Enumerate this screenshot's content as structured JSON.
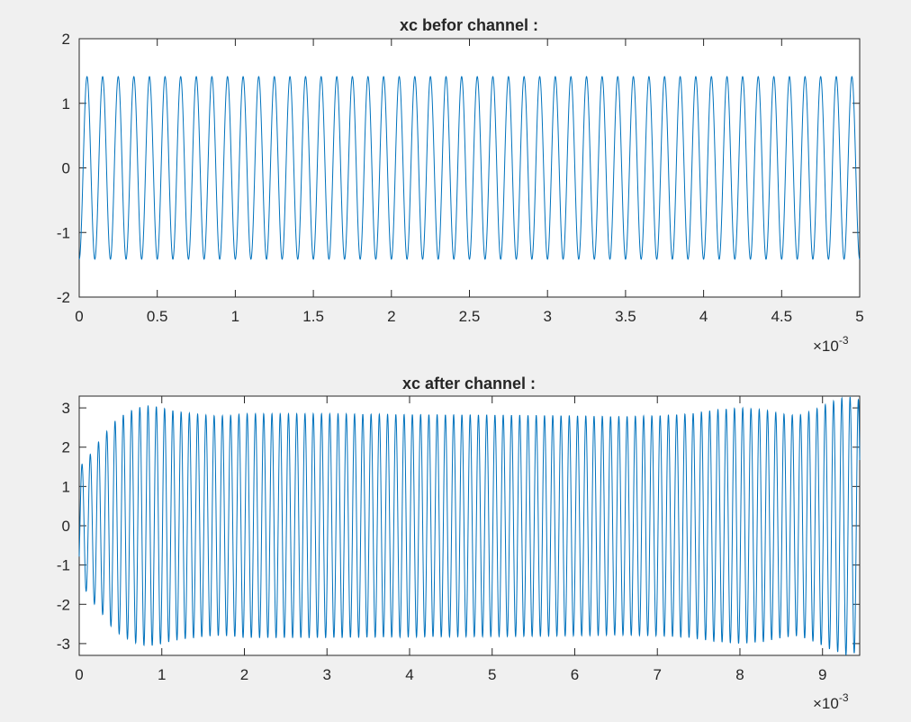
{
  "figure": {
    "background": "#f0f0f0",
    "axes_background": "#ffffff",
    "line_color": "#0072bd"
  },
  "chart_data": [
    {
      "type": "line",
      "title": "xc befor channel :",
      "xlabel": "",
      "ylabel": "",
      "xlim": [
        0,
        0.005
      ],
      "ylim": [
        -2,
        2
      ],
      "x_tick_labels": [
        "0",
        "0.5",
        "1",
        "1.5",
        "2",
        "2.5",
        "3",
        "3.5",
        "4",
        "4.5",
        "5"
      ],
      "y_tick_labels": [
        "2",
        "1",
        "0",
        "-1",
        "-2"
      ],
      "x_exponent": {
        "base": "×10",
        "power": "-3"
      },
      "grid": false,
      "series": [
        {
          "color": "#0072bd",
          "description": "sinusoid, amplitude 1.414, frequency 10 kHz, sampled over 0 to 0.005 s",
          "amplitude": 1.414,
          "frequency_hz": 10000,
          "phase_rad": -1.5708,
          "x_range": [
            0,
            0.005
          ]
        }
      ]
    },
    {
      "type": "line",
      "title": "xc after channel :",
      "xlabel": "",
      "ylabel": "",
      "xlim": [
        0,
        0.00945
      ],
      "ylim": [
        -3.3,
        3.3
      ],
      "x_tick_labels": [
        "0",
        "1",
        "2",
        "3",
        "4",
        "5",
        "6",
        "7",
        "8",
        "9"
      ],
      "y_tick_labels": [
        "3",
        "2",
        "1",
        "0",
        "-1",
        "-2",
        "-3"
      ],
      "x_exponent": {
        "base": "×10",
        "power": "-3"
      },
      "grid": false,
      "series": [
        {
          "color": "#0072bd",
          "frequency_hz": 10000,
          "x_range": [
            0,
            0.00945
          ],
          "envelope": {
            "t": [
              0,
              0.0001,
              0.0002,
              0.0003,
              0.0004,
              0.0005,
              0.0006,
              0.0007,
              0.0008,
              0.0009,
              0.001,
              0.0011,
              0.0012,
              0.0014,
              0.0016,
              0.0018,
              0.002,
              0.003,
              0.004,
              0.005,
              0.006,
              0.0065,
              0.007,
              0.0074,
              0.0077,
              0.008,
              0.0083,
              0.0085,
              0.0087,
              0.0089,
              0.0091,
              0.0093,
              0.00945
            ],
            "amp": [
              1.5,
              1.7,
              2.05,
              2.3,
              2.6,
              2.78,
              2.9,
              3.0,
              3.05,
              3.05,
              3.0,
              2.95,
              2.9,
              2.85,
              2.8,
              2.8,
              2.85,
              2.85,
              2.83,
              2.82,
              2.8,
              2.78,
              2.8,
              2.85,
              2.95,
              3.0,
              2.95,
              2.85,
              2.8,
              2.95,
              3.15,
              3.3,
              3.2
            ]
          }
        }
      ]
    }
  ]
}
